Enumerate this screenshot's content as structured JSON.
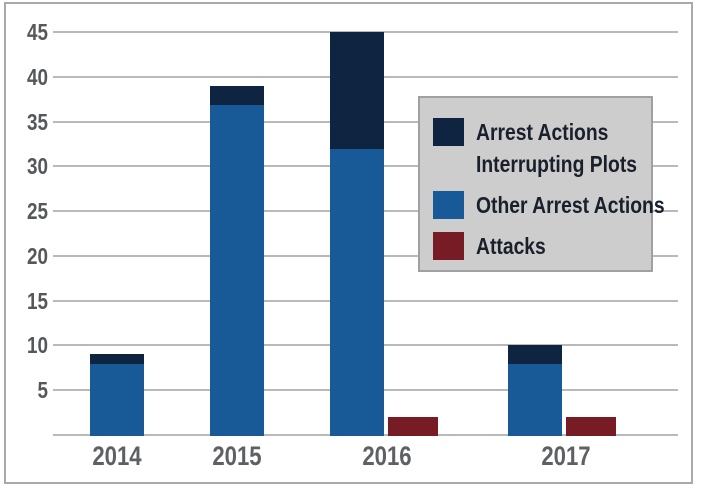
{
  "figure": {
    "background": "#ffffff",
    "border_color": "#a7a9ac"
  },
  "chart_data": {
    "type": "bar",
    "subtype": "stacked-and-grouped",
    "title": "",
    "xlabel": "",
    "ylabel": "",
    "categories": [
      "2014",
      "2015",
      "2016",
      "2017"
    ],
    "series": [
      {
        "name": "Arrest Actions Interrupting Plots",
        "legend_lines": [
          "Arrest Actions",
          "Interrupting Plots"
        ],
        "color": "#0f2440",
        "stack": "arrest-actions",
        "stack_level": 2,
        "values": [
          1,
          2,
          13,
          2
        ]
      },
      {
        "name": "Other Arrest Actions",
        "legend_lines": [
          "Other Arrest Actions"
        ],
        "color": "#175a97",
        "stack": "arrest-actions",
        "stack_level": 1,
        "values": [
          8,
          37,
          32,
          8
        ]
      },
      {
        "name": "Attacks",
        "legend_lines": [
          "Attacks"
        ],
        "color": "#771b25",
        "stack": "attacks",
        "stack_level": 1,
        "values": [
          0,
          0,
          2,
          2
        ]
      }
    ],
    "stack_totals": {
      "arrest-actions": [
        9,
        39,
        45,
        10
      ],
      "attacks": [
        0,
        0,
        2,
        2
      ]
    },
    "ylim": [
      0,
      45
    ],
    "yticks": [
      5,
      10,
      15,
      20,
      25,
      30,
      35,
      40,
      45
    ],
    "grid": "horizontal",
    "gridline_color": "#b7b9bb",
    "axis_tick_color": "#55575a",
    "category_label_color": "#5e6063",
    "legend": {
      "position": "middle-right",
      "background": "#cdcdce",
      "border_color": "#9ea0a3",
      "text_color": "#1a202b"
    }
  }
}
